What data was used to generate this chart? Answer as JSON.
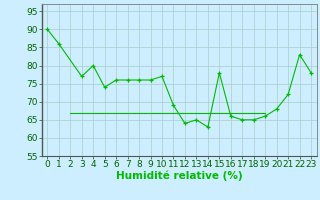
{
  "x": [
    0,
    1,
    2,
    3,
    4,
    5,
    6,
    7,
    8,
    9,
    10,
    11,
    12,
    13,
    14,
    15,
    16,
    17,
    18,
    19,
    20,
    21,
    22,
    23
  ],
  "y1": [
    90,
    86,
    null,
    77,
    80,
    74,
    76,
    76,
    76,
    76,
    77,
    69,
    64,
    65,
    63,
    78,
    66,
    65,
    65,
    66,
    68,
    72,
    83,
    78
  ],
  "y2": [
    null,
    null,
    67,
    67,
    67,
    67,
    67,
    67,
    67,
    67,
    67,
    67,
    67,
    67,
    67,
    67,
    67,
    67,
    67,
    67,
    null,
    null,
    null,
    null
  ],
  "line_color": "#00bb00",
  "bg_color": "#cceeff",
  "grid_color": "#aacccc",
  "xlabel": "Humidité relative (%)",
  "ylim": [
    55,
    97
  ],
  "yticks": [
    55,
    60,
    65,
    70,
    75,
    80,
    85,
    90,
    95
  ],
  "xticks": [
    0,
    1,
    2,
    3,
    4,
    5,
    6,
    7,
    8,
    9,
    10,
    11,
    12,
    13,
    14,
    15,
    16,
    17,
    18,
    19,
    20,
    21,
    22,
    23
  ],
  "xlabel_fontsize": 7.5,
  "tick_fontsize": 6.5
}
